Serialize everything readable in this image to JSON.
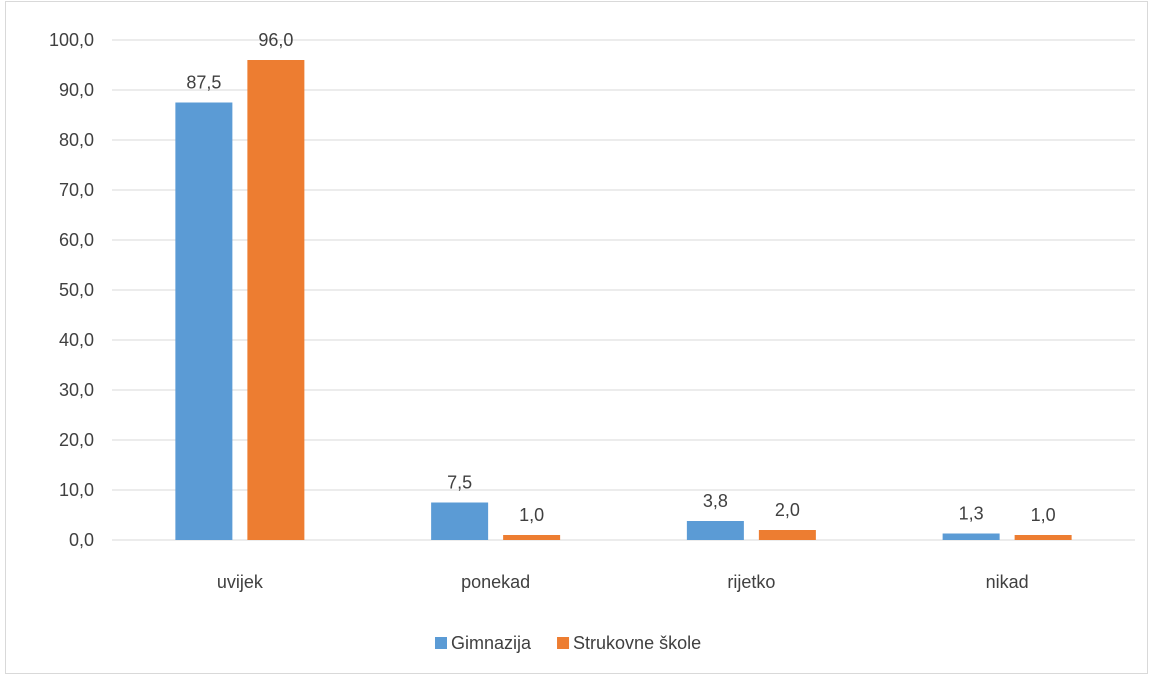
{
  "chart_data": {
    "type": "bar",
    "categories": [
      "uvijek",
      "ponekad",
      "rijetko",
      "nikad"
    ],
    "series": [
      {
        "name": "Gimnazija",
        "values": [
          87.5,
          7.5,
          3.8,
          1.3
        ],
        "labels": [
          "87,5",
          "7,5",
          "3,8",
          "1,3"
        ],
        "color": "#5b9bd5"
      },
      {
        "name": "Strukovne škole",
        "values": [
          96.0,
          1.0,
          2.0,
          1.0
        ],
        "labels": [
          "96,0",
          "1,0",
          "2,0",
          "1,0"
        ],
        "color": "#ed7d31"
      }
    ],
    "yticks": [
      "0,0",
      "10,0",
      "20,0",
      "30,0",
      "40,0",
      "50,0",
      "60,0",
      "70,0",
      "80,0",
      "90,0",
      "100,0"
    ],
    "ylim": [
      0,
      100
    ],
    "grid": true,
    "legend": "bottom",
    "gridline_color": "#d9d9d9"
  }
}
